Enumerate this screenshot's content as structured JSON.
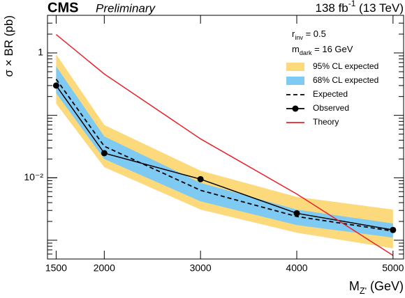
{
  "chart_data": {
    "type": "line",
    "experiment": "CMS",
    "status": "Preliminary",
    "lumi": [
      {
        "t": "138 fb"
      },
      {
        "t": "-1",
        "sup": true
      },
      {
        "t": " (13 TeV)"
      }
    ],
    "annotations": [
      [
        {
          "t": "r"
        },
        {
          "t": "inv",
          "sub": true
        },
        {
          "t": " = 0.5"
        }
      ],
      [
        {
          "t": "m"
        },
        {
          "t": "dark",
          "sub": true
        },
        {
          "t": " = 16 GeV"
        }
      ]
    ],
    "ylabel": [
      {
        "t": "σ × BR (pb)"
      }
    ],
    "xlabel": [
      {
        "t": "M"
      },
      {
        "t": "Z'",
        "sub": true
      },
      {
        "t": " (GeV)"
      }
    ],
    "x": [
      1500,
      2000,
      3000,
      4000,
      5000
    ],
    "xlim": [
      1410,
      5110
    ],
    "xticks": [
      1500,
      2000,
      3000,
      4000,
      5000
    ],
    "ylim": [
      0.0005,
      4
    ],
    "ylog": true,
    "yticks": [
      1,
      {
        "value": 0.01,
        "label": "10⁻²"
      }
    ],
    "series": [
      {
        "name": "95% CL expected",
        "color": "#fcd97a",
        "style": "band",
        "upper": [
          0.95,
          0.07,
          0.013,
          0.00495,
          0.0031
        ],
        "lower": [
          0.154,
          0.0148,
          0.0031,
          0.00132,
          0.00074
        ]
      },
      {
        "name": "68% CL expected",
        "color": "#7fcaf2",
        "style": "band",
        "upper": [
          0.61,
          0.046,
          0.0083,
          0.0031,
          0.00185
        ],
        "lower": [
          0.227,
          0.02,
          0.0042,
          0.00175,
          0.0011
        ]
      },
      {
        "name": "Expected",
        "color": "#000000",
        "style": "dashed",
        "values": [
          0.38,
          0.032,
          0.0063,
          0.0024,
          0.0014
        ]
      },
      {
        "name": "Observed",
        "color": "#000000",
        "style": "markers",
        "values": [
          0.3,
          0.0248,
          0.0095,
          0.0027,
          0.00146
        ]
      },
      {
        "name": "Theory",
        "color": "#e8222a",
        "style": "solid",
        "values": [
          1.97,
          0.46,
          0.042,
          0.0055,
          0.00057
        ]
      }
    ]
  }
}
